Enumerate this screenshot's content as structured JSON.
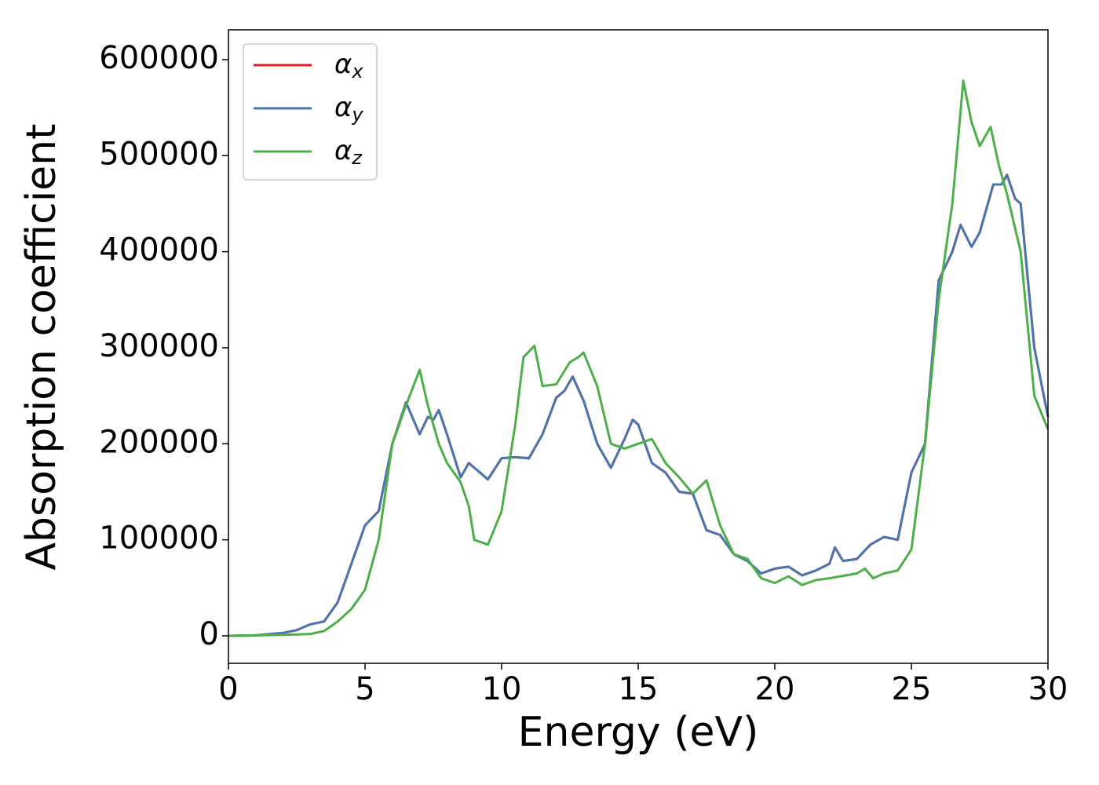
{
  "chart_data": {
    "type": "line",
    "x_label": "Energy (eV)",
    "y_label": "Absorption coefficient",
    "xlim": [
      0,
      30
    ],
    "ylim": [
      -28600,
      631000
    ],
    "xticks": [
      0,
      5,
      10,
      15,
      20,
      25,
      30
    ],
    "yticks": [
      0,
      100000,
      200000,
      300000,
      400000,
      500000,
      600000
    ],
    "legend": "upper left",
    "series": [
      {
        "name": "αx",
        "color": "#e41a1c",
        "x": [
          0,
          1,
          2,
          2.5,
          3,
          3.5,
          4,
          4.5,
          5,
          5.5,
          6,
          6.5,
          7,
          7.3,
          7.5,
          7.7,
          8,
          8.5,
          8.8,
          9,
          9.5,
          10,
          10.5,
          11,
          11.5,
          12,
          12.3,
          12.6,
          13,
          13.5,
          14,
          14.5,
          14.8,
          15,
          15.5,
          16,
          16.5,
          17,
          17.5,
          18,
          18.5,
          19,
          19.5,
          20,
          20.5,
          21,
          21.5,
          22,
          22.2,
          22.5,
          23,
          23.5,
          24,
          24.5,
          25,
          25.5,
          26,
          26.5,
          26.8,
          27.2,
          27.5,
          28,
          28.3,
          28.5,
          28.8,
          29,
          29.5,
          30
        ],
        "values": [
          0,
          500,
          3000,
          6000,
          12000,
          15000,
          35000,
          75000,
          115000,
          130000,
          200000,
          243000,
          210000,
          228000,
          225000,
          235000,
          210000,
          165000,
          180000,
          175000,
          163000,
          185000,
          186000,
          185000,
          210000,
          248000,
          255000,
          270000,
          245000,
          200000,
          175000,
          205000,
          225000,
          220000,
          180000,
          170000,
          150000,
          148000,
          110000,
          105000,
          85000,
          78000,
          65000,
          70000,
          72000,
          63000,
          68000,
          75000,
          92000,
          78000,
          80000,
          95000,
          103000,
          100000,
          170000,
          200000,
          370000,
          400000,
          428000,
          405000,
          420000,
          470000,
          470000,
          480000,
          455000,
          450000,
          300000,
          228000
        ]
      },
      {
        "name": "αy",
        "color": "#4a76b0",
        "x": [
          0,
          1,
          2,
          2.5,
          3,
          3.5,
          4,
          4.5,
          5,
          5.5,
          6,
          6.5,
          7,
          7.3,
          7.5,
          7.7,
          8,
          8.5,
          8.8,
          9,
          9.5,
          10,
          10.5,
          11,
          11.5,
          12,
          12.3,
          12.6,
          13,
          13.5,
          14,
          14.5,
          14.8,
          15,
          15.5,
          16,
          16.5,
          17,
          17.5,
          18,
          18.5,
          19,
          19.5,
          20,
          20.5,
          21,
          21.5,
          22,
          22.2,
          22.5,
          23,
          23.5,
          24,
          24.5,
          25,
          25.5,
          26,
          26.5,
          26.8,
          27.2,
          27.5,
          28,
          28.3,
          28.5,
          28.8,
          29,
          29.5,
          30
        ],
        "values": [
          0,
          500,
          3000,
          6000,
          12000,
          15000,
          35000,
          75000,
          115000,
          130000,
          200000,
          243000,
          210000,
          228000,
          225000,
          235000,
          210000,
          165000,
          180000,
          175000,
          163000,
          185000,
          186000,
          185000,
          210000,
          248000,
          255000,
          270000,
          245000,
          200000,
          175000,
          205000,
          225000,
          220000,
          180000,
          170000,
          150000,
          148000,
          110000,
          105000,
          85000,
          78000,
          65000,
          70000,
          72000,
          63000,
          68000,
          75000,
          92000,
          78000,
          80000,
          95000,
          103000,
          100000,
          170000,
          200000,
          370000,
          400000,
          428000,
          405000,
          420000,
          470000,
          470000,
          480000,
          455000,
          450000,
          300000,
          228000
        ]
      },
      {
        "name": "αz",
        "color": "#4daf4a",
        "x": [
          0,
          2,
          3,
          3.5,
          4,
          4.5,
          5,
          5.5,
          6,
          6.5,
          7,
          7.3,
          7.7,
          8,
          8.5,
          8.8,
          9,
          9.5,
          10,
          10.5,
          10.8,
          11.2,
          11.5,
          12,
          12.5,
          12.8,
          13,
          13.5,
          14,
          14.5,
          15,
          15.5,
          16,
          16.5,
          17,
          17.5,
          18,
          18.5,
          19,
          19.5,
          20,
          20.5,
          21,
          21.5,
          22,
          23,
          23.3,
          23.6,
          24,
          24.5,
          25,
          25.5,
          26,
          26.5,
          26.9,
          27.2,
          27.5,
          27.9,
          28.2,
          28.5,
          29,
          29.5,
          30
        ],
        "values": [
          0,
          1000,
          2000,
          5000,
          15000,
          28000,
          48000,
          100000,
          200000,
          240000,
          277000,
          240000,
          200000,
          180000,
          160000,
          135000,
          100000,
          95000,
          130000,
          220000,
          290000,
          302000,
          260000,
          262000,
          285000,
          290000,
          295000,
          260000,
          200000,
          195000,
          200000,
          205000,
          180000,
          165000,
          148000,
          162000,
          115000,
          85000,
          80000,
          60000,
          55000,
          62000,
          53000,
          58000,
          60000,
          65000,
          70000,
          60000,
          65000,
          68000,
          90000,
          200000,
          350000,
          450000,
          578000,
          535000,
          510000,
          530000,
          490000,
          460000,
          400000,
          250000,
          215000
        ]
      }
    ]
  }
}
